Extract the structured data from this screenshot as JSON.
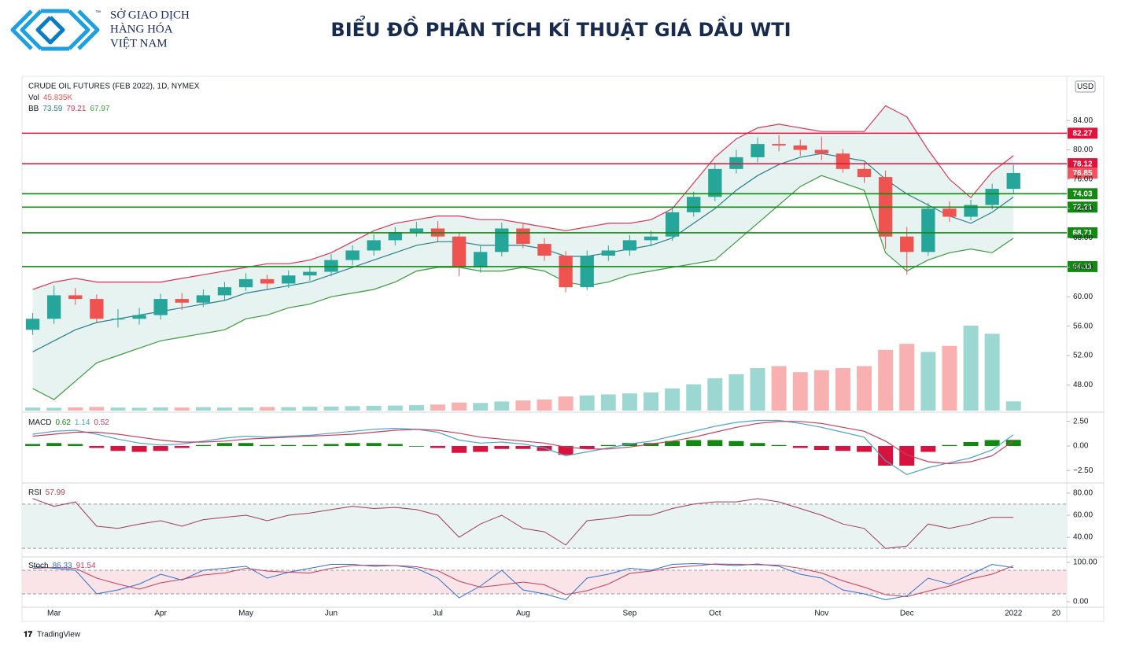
{
  "header": {
    "logo_lines": [
      "SỞ GIAO DỊCH",
      "HÀNG HÓA",
      "VIỆT NAM"
    ],
    "trademark": "™",
    "title": "BIỂU ĐỒ PHÂN TÍCH KĨ THUẬT GIÁ DẦU WTI",
    "currency": "USD",
    "footer": "TradingView"
  },
  "chart_data": [
    {
      "type": "candlestick",
      "title": "CRUDE OIL FUTURES (FEB 2022), 1D, NYMEX",
      "categories": [
        null,
        "Mar",
        null,
        null,
        null,
        null,
        "Apr",
        null,
        null,
        null,
        "May",
        null,
        null,
        null,
        "Jun",
        null,
        null,
        null,
        null,
        "Jul",
        null,
        null,
        null,
        "Aug",
        null,
        null,
        null,
        null,
        "Sep",
        null,
        null,
        null,
        "Oct",
        null,
        null,
        null,
        null,
        "Nov",
        null,
        null,
        null,
        "Dec",
        null,
        null,
        null,
        null,
        "2022",
        null,
        "20"
      ],
      "open": [
        55.5,
        57,
        60.2,
        59.7,
        57,
        57,
        57.5,
        59.7,
        59.2,
        60.2,
        61.3,
        62.4,
        61.8,
        62.9,
        63.4,
        65,
        66.3,
        67.7,
        68.8,
        69.3,
        68.2,
        64,
        66.1,
        69.3,
        67.2,
        65.6,
        61.3,
        65.6,
        66.3,
        67.7,
        68.2,
        71.5,
        73.6,
        77.4,
        79,
        80.8,
        80.6,
        80,
        79.5,
        77.4,
        76.3,
        68.2,
        66.1,
        72,
        70.9,
        72.5,
        74.7,
        null,
        null
      ],
      "high": [
        57.8,
        61.5,
        61.2,
        60.3,
        58.3,
        58.5,
        60.4,
        60.5,
        61,
        62,
        63.2,
        63,
        63.6,
        64.2,
        65.8,
        67,
        68.5,
        69.5,
        70.2,
        70.3,
        68.8,
        66.9,
        70.1,
        70,
        68,
        66.2,
        66.3,
        67,
        68.4,
        69,
        72.2,
        74.3,
        78.2,
        80,
        81.7,
        82,
        81.4,
        81.8,
        80.1,
        78.3,
        77.2,
        69.5,
        72.8,
        73,
        73.2,
        75.4,
        78,
        null,
        null
      ],
      "low": [
        54.8,
        56.3,
        58.9,
        56.5,
        55.8,
        56.2,
        56.9,
        58.2,
        58.6,
        59.6,
        60.8,
        61.1,
        61.2,
        62.2,
        62.8,
        64.3,
        65.6,
        67,
        68.2,
        67.5,
        62.8,
        63.3,
        65.5,
        66.6,
        64.9,
        60.6,
        60.9,
        64.9,
        65.6,
        67,
        67.6,
        70.9,
        73,
        76.8,
        78.3,
        79.8,
        79.2,
        78.6,
        76.9,
        75.5,
        66.5,
        63,
        65.6,
        70.2,
        70.4,
        71.9,
        74.1,
        null,
        null
      ],
      "close": [
        57,
        60.2,
        59.7,
        57,
        57,
        57.5,
        59.7,
        59.2,
        60.2,
        61.3,
        62.4,
        61.8,
        62.9,
        63.4,
        65,
        66.3,
        67.7,
        68.8,
        69.3,
        68.2,
        64,
        66.1,
        69.3,
        67.2,
        65.6,
        61.3,
        65.6,
        66.3,
        67.7,
        68.2,
        71.5,
        73.6,
        77.4,
        79,
        80.8,
        80.6,
        80,
        79.5,
        77.4,
        76.3,
        68.2,
        66.1,
        72,
        70.9,
        72.5,
        74.7,
        76.85,
        null,
        null
      ],
      "up_color": "#26a69a",
      "down_color": "#ef5350",
      "last_price_color": "#f7525f",
      "volume": {
        "name": "Vol",
        "value_label": "45.835K",
        "label_color": "#ef5350",
        "values": [
          15,
          14,
          16,
          18,
          15,
          14,
          16,
          15,
          17,
          15,
          16,
          18,
          17,
          19,
          20,
          22,
          24,
          25,
          27,
          30,
          40,
          38,
          45,
          50,
          55,
          70,
          75,
          80,
          85,
          90,
          110,
          130,
          160,
          180,
          210,
          220,
          190,
          200,
          210,
          220,
          300,
          330,
          290,
          320,
          420,
          380,
          45.835,
          null,
          null
        ]
      },
      "bb": {
        "name": "BB",
        "basis_color": "#2a7f8f",
        "upper_color": "#d9375a",
        "lower_color": "#3d9a3d",
        "fill": "#e6f3f1",
        "basis": [
          52.5,
          54,
          55.5,
          56.5,
          57,
          57.5,
          58,
          58.5,
          59,
          59.5,
          60.5,
          61,
          61.5,
          62,
          63,
          64,
          65,
          66,
          67,
          67.5,
          67.5,
          67,
          67,
          67,
          66.5,
          65.5,
          65.5,
          66,
          66.5,
          67,
          68,
          70,
          72,
          74.5,
          76.5,
          78,
          79,
          79.5,
          79,
          78.5,
          76,
          74,
          72.5,
          71,
          70,
          71.5,
          73.59,
          null,
          null
        ],
        "upper": [
          61,
          62,
          62.5,
          62,
          62,
          62,
          62,
          62.5,
          63,
          63.5,
          64,
          64.5,
          64.5,
          65,
          66,
          67.5,
          69,
          70,
          70.5,
          71,
          71,
          70.5,
          70.5,
          70,
          69.5,
          69,
          69.5,
          70,
          70,
          70.5,
          72,
          75.5,
          79,
          81.5,
          83,
          83.5,
          83,
          82.5,
          82.5,
          82.5,
          86,
          84.5,
          80,
          76,
          73.5,
          77,
          79.21,
          null,
          null
        ],
        "lower": [
          47.5,
          46,
          48.5,
          51,
          52,
          53,
          54,
          54.5,
          55,
          55.5,
          57,
          57.5,
          58.5,
          59,
          60,
          60.5,
          61,
          62,
          63.5,
          64,
          64,
          63.5,
          63.5,
          64,
          63.5,
          62,
          61.5,
          62,
          63,
          63.5,
          64,
          64.5,
          65,
          67.5,
          70,
          72.5,
          75,
          76.5,
          75.5,
          74.5,
          66,
          63.5,
          65,
          66,
          66.5,
          66,
          67.97,
          null,
          null
        ]
      },
      "levels": [
        {
          "value": 82.27,
          "color": "#e0123c"
        },
        {
          "value": 78.12,
          "color": "#e0123c"
        },
        {
          "value": 74.03,
          "color": "#128a12"
        },
        {
          "value": 72.21,
          "color": "#128a12"
        },
        {
          "value": 68.71,
          "color": "#128a12"
        },
        {
          "value": 64.11,
          "color": "#128a12"
        }
      ],
      "ylim": [
        44.5,
        89.7
      ],
      "yticks": [
        {
          "value": 48,
          "label": "48.00"
        },
        {
          "value": 52,
          "label": "52.00"
        },
        {
          "value": 56,
          "label": "56.00"
        },
        {
          "value": 60,
          "label": "60.00"
        },
        {
          "value": 64,
          "label": "64.00"
        },
        {
          "value": 68,
          "label": "68.00"
        },
        {
          "value": 72,
          "label": "72.00"
        },
        {
          "value": 76,
          "label": "76.00"
        },
        {
          "value": 80,
          "label": "80.00"
        },
        {
          "value": 84,
          "label": "84.00"
        }
      ],
      "grid": false
    },
    {
      "type": "macd",
      "title": "MACD",
      "ylim": [
        -3.6,
        3.2
      ],
      "yticks": [
        {
          "value": 2.5,
          "label": "2.50"
        },
        {
          "value": 0,
          "label": "0.00"
        },
        {
          "value": -2.5,
          "label": "−2.50"
        }
      ],
      "histogram": {
        "up_color": "#0f8a0f",
        "down_color": "#d8123e",
        "values": [
          0.2,
          0.3,
          0.2,
          -0.2,
          -0.5,
          -0.6,
          -0.5,
          -0.2,
          0.1,
          0.3,
          0.3,
          0.1,
          0.1,
          0.1,
          0.2,
          0.3,
          0.3,
          0.2,
          0,
          -0.2,
          -0.7,
          -0.6,
          -0.3,
          -0.3,
          -0.5,
          -0.9,
          -0.3,
          0.1,
          0.3,
          0.3,
          0.5,
          0.6,
          0.6,
          0.5,
          0.3,
          0.1,
          -0.2,
          -0.4,
          -0.5,
          -0.6,
          -2,
          -2,
          -0.6,
          0.1,
          0.4,
          0.6,
          0.62,
          null,
          null
        ]
      },
      "series": [
        {
          "color": "#4fa3c7",
          "values": [
            1.2,
            1.5,
            1.6,
            1.2,
            0.7,
            0.3,
            0.1,
            0.2,
            0.5,
            0.8,
            1,
            0.9,
            1,
            1.1,
            1.3,
            1.5,
            1.7,
            1.8,
            1.7,
            1.4,
            0.6,
            0.3,
            0.4,
            0.2,
            -0.2,
            -1,
            -0.6,
            -0.2,
            0.2,
            0.5,
            1,
            1.5,
            2,
            2.4,
            2.6,
            2.6,
            2.3,
            1.9,
            1.4,
            0.9,
            -1.5,
            -2.9,
            -2.2,
            -1.7,
            -1.2,
            -0.4,
            1.14,
            null,
            null
          ]
        },
        {
          "color": "#c2405e",
          "values": [
            1,
            1.2,
            1.4,
            1.4,
            1.2,
            0.9,
            0.6,
            0.4,
            0.4,
            0.5,
            0.7,
            0.8,
            0.9,
            1,
            1.1,
            1.2,
            1.4,
            1.6,
            1.7,
            1.6,
            1.3,
            0.9,
            0.7,
            0.5,
            0.3,
            -0.1,
            -0.3,
            -0.3,
            -0.1,
            0.2,
            0.5,
            0.9,
            1.4,
            1.9,
            2.3,
            2.5,
            2.5,
            2.3,
            1.9,
            1.5,
            0.5,
            -0.9,
            -1.6,
            -1.8,
            -1.6,
            -1,
            0.52,
            null,
            null
          ]
        }
      ]
    },
    {
      "type": "line",
      "title": "RSI",
      "ylim": [
        23,
        87
      ],
      "yticks": [
        {
          "value": 80,
          "label": "80.00"
        },
        {
          "value": 60,
          "label": "60.00"
        },
        {
          "value": 40,
          "label": "40.00"
        }
      ],
      "bands": [
        30,
        70
      ],
      "band_fill": "#e8f3f2",
      "series": [
        {
          "color": "#a33a55",
          "values": [
            75,
            68,
            72,
            50,
            48,
            52,
            55,
            50,
            56,
            58,
            60,
            55,
            60,
            62,
            65,
            68,
            66,
            67,
            65,
            60,
            40,
            52,
            60,
            48,
            45,
            33,
            55,
            57,
            60,
            60,
            66,
            70,
            72,
            72,
            75,
            72,
            66,
            60,
            52,
            48,
            30,
            32,
            52,
            48,
            52,
            58,
            57.99,
            null,
            null
          ]
        }
      ]
    },
    {
      "type": "line",
      "title": "Stoch",
      "ylim": [
        -10,
        110
      ],
      "yticks": [
        {
          "value": 100,
          "label": "100.00"
        },
        {
          "value": 0,
          "label": "0.00"
        }
      ],
      "bands": [
        20,
        80
      ],
      "band_fill": "#fbe4e8",
      "series": [
        {
          "color": "#2f6fd6",
          "values": [
            90,
            85,
            80,
            20,
            30,
            45,
            70,
            55,
            80,
            85,
            90,
            60,
            75,
            85,
            95,
            95,
            90,
            92,
            85,
            60,
            10,
            40,
            80,
            30,
            20,
            5,
            60,
            70,
            85,
            80,
            95,
            97,
            95,
            92,
            96,
            90,
            70,
            60,
            30,
            20,
            5,
            15,
            60,
            45,
            70,
            95,
            86.33,
            null,
            null
          ]
        },
        {
          "color": "#c2405e",
          "values": [
            85,
            87,
            85,
            60,
            45,
            32,
            48,
            57,
            68,
            73,
            85,
            78,
            75,
            73,
            85,
            92,
            93,
            92,
            89,
            79,
            52,
            37,
            43,
            50,
            43,
            18,
            28,
            45,
            72,
            78,
            87,
            91,
            96,
            95,
            94,
            93,
            85,
            73,
            53,
            37,
            18,
            13,
            27,
            40,
            58,
            70,
            91.54,
            null,
            null
          ]
        }
      ]
    }
  ]
}
